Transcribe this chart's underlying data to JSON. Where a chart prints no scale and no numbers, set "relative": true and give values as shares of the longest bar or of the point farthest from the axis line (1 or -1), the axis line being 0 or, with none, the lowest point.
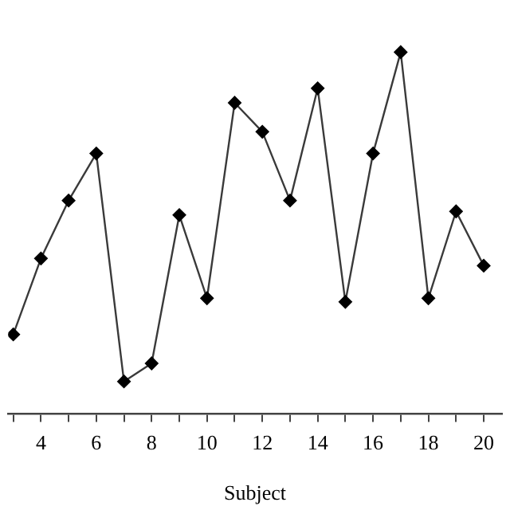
{
  "chart_data": {
    "type": "line",
    "xlabel": "Subject",
    "relative": true,
    "x": [
      3,
      4,
      5,
      6,
      7,
      8,
      9,
      10,
      11,
      12,
      13,
      14,
      15,
      16,
      17,
      18,
      19,
      20
    ],
    "series": [
      {
        "color": "#000000",
        "values": [
          0.22,
          0.43,
          0.59,
          0.72,
          0.09,
          0.14,
          0.55,
          0.32,
          0.86,
          0.78,
          0.59,
          0.9,
          0.31,
          0.72,
          1,
          0.32,
          0.56,
          0.41
        ]
      }
    ],
    "xlim": [
      2.82,
      20.65
    ],
    "xticks": [
      {
        "value": 3,
        "label": null
      },
      4,
      {
        "value": 5,
        "label": null
      },
      6,
      {
        "value": 7,
        "label": null
      },
      8,
      {
        "value": 9,
        "label": null
      },
      10,
      {
        "value": 11,
        "label": null
      },
      12,
      {
        "value": 13,
        "label": null
      },
      14,
      {
        "value": 15,
        "label": null
      },
      16,
      {
        "value": 17,
        "label": null
      },
      18,
      {
        "value": 19,
        "label": null
      },
      20
    ],
    "marker": "diamond",
    "line_style": "solid",
    "grid": false,
    "legend": false
  }
}
